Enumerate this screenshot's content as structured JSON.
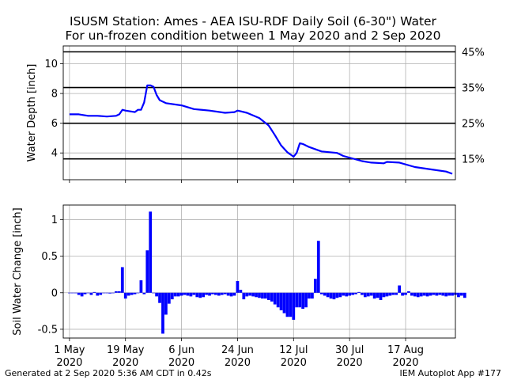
{
  "title_line1": "ISUSM Station: Ames - AEA ISU-RDF Daily Soil (6-30\") Water",
  "title_line2": "For un-frozen condition between 1 May 2020 and 2 Sep 2020",
  "footer_left": "Generated at 2 Sep 2020 5:36 AM CDT in 0.42s",
  "footer_right": "IEM Autoplot App #177",
  "colors": {
    "series": "#0000ff",
    "grid": "#b0b0b0",
    "threshold": "#000000"
  },
  "chart_data": [
    {
      "type": "line",
      "ylabel": "Water Depth [inch]",
      "ylim": [
        2.2,
        11.2
      ],
      "yticks": [
        4,
        6,
        8,
        10
      ],
      "grid": true,
      "x_start": "2020-05-01",
      "x": [
        "2020-05-01",
        "2020-05-04",
        "2020-05-07",
        "2020-05-10",
        "2020-05-13",
        "2020-05-16",
        "2020-05-17",
        "2020-05-18",
        "2020-05-19",
        "2020-05-22",
        "2020-05-23",
        "2020-05-24",
        "2020-05-25",
        "2020-05-26",
        "2020-05-27",
        "2020-05-28",
        "2020-05-29",
        "2020-05-30",
        "2020-06-01",
        "2020-06-06",
        "2020-06-10",
        "2020-06-15",
        "2020-06-20",
        "2020-06-23",
        "2020-06-24",
        "2020-06-25",
        "2020-06-27",
        "2020-07-01",
        "2020-07-04",
        "2020-07-06",
        "2020-07-08",
        "2020-07-10",
        "2020-07-12",
        "2020-07-13",
        "2020-07-14",
        "2020-07-15",
        "2020-07-17",
        "2020-07-21",
        "2020-07-26",
        "2020-07-28",
        "2020-08-03",
        "2020-08-06",
        "2020-08-10",
        "2020-08-11",
        "2020-08-15",
        "2020-08-20",
        "2020-08-25",
        "2020-08-30",
        "2020-09-01"
      ],
      "y": [
        6.6,
        6.6,
        6.5,
        6.5,
        6.45,
        6.5,
        6.6,
        6.9,
        6.85,
        6.75,
        6.9,
        6.9,
        7.4,
        8.55,
        8.55,
        8.45,
        7.9,
        7.55,
        7.35,
        7.2,
        6.95,
        6.85,
        6.7,
        6.75,
        6.85,
        6.8,
        6.7,
        6.35,
        5.85,
        5.2,
        4.5,
        4.05,
        3.75,
        4.0,
        4.65,
        4.6,
        4.4,
        4.1,
        4.0,
        3.8,
        3.45,
        3.35,
        3.3,
        3.4,
        3.35,
        3.05,
        2.9,
        2.75,
        2.6
      ],
      "thresholds": [
        {
          "value": 10.8,
          "label": "45%"
        },
        {
          "value": 8.4,
          "label": "35%"
        },
        {
          "value": 6.0,
          "label": "25%"
        },
        {
          "value": 3.6,
          "label": "15%"
        }
      ]
    },
    {
      "type": "bar",
      "ylabel": "Soil Water Change [inch]",
      "ylim": [
        -0.62,
        1.2
      ],
      "yticks": [
        -0.5,
        0.0,
        0.5,
        1.0
      ],
      "grid": true,
      "x_start": "2020-05-01",
      "values": [
        0.0,
        0.0,
        0.0,
        -0.03,
        -0.05,
        -0.02,
        0.0,
        -0.03,
        0.01,
        -0.04,
        -0.03,
        0.0,
        0.0,
        -0.01,
        0.0,
        0.02,
        0.02,
        0.35,
        -0.08,
        -0.04,
        -0.03,
        -0.02,
        0.0,
        0.17,
        -0.02,
        0.58,
        1.11,
        0.0,
        -0.05,
        -0.14,
        -0.56,
        -0.3,
        -0.15,
        -0.09,
        -0.05,
        -0.05,
        -0.04,
        -0.03,
        -0.04,
        -0.05,
        -0.03,
        -0.06,
        -0.07,
        -0.06,
        -0.03,
        -0.04,
        -0.02,
        -0.03,
        -0.04,
        -0.03,
        -0.02,
        -0.04,
        -0.05,
        -0.04,
        0.16,
        0.04,
        -0.09,
        -0.05,
        -0.04,
        -0.05,
        -0.06,
        -0.07,
        -0.08,
        -0.08,
        -0.1,
        -0.12,
        -0.16,
        -0.2,
        -0.24,
        -0.28,
        -0.33,
        -0.33,
        -0.37,
        -0.2,
        -0.2,
        -0.22,
        -0.2,
        -0.08,
        -0.08,
        0.19,
        0.71,
        -0.02,
        -0.04,
        -0.06,
        -0.08,
        -0.09,
        -0.07,
        -0.06,
        -0.04,
        -0.05,
        -0.04,
        -0.03,
        -0.02,
        0.01,
        -0.03,
        -0.06,
        -0.05,
        -0.04,
        -0.08,
        -0.07,
        -0.1,
        -0.06,
        -0.05,
        -0.04,
        -0.03,
        -0.03,
        0.1,
        -0.04,
        -0.03,
        0.02,
        -0.04,
        -0.05,
        -0.06,
        -0.05,
        -0.04,
        -0.05,
        -0.04,
        -0.03,
        -0.04,
        -0.03,
        -0.04,
        -0.05,
        -0.04,
        -0.04,
        -0.03,
        -0.06,
        -0.04,
        -0.07
      ]
    }
  ],
  "xaxis": {
    "ticks": [
      {
        "date": "2020-05-01",
        "label": "1 May",
        "year": "2020"
      },
      {
        "date": "2020-05-19",
        "label": "19 May",
        "year": "2020"
      },
      {
        "date": "2020-06-06",
        "label": "6 Jun",
        "year": "2020"
      },
      {
        "date": "2020-06-24",
        "label": "24 Jun",
        "year": "2020"
      },
      {
        "date": "2020-07-12",
        "label": "12 Jul",
        "year": "2020"
      },
      {
        "date": "2020-07-30",
        "label": "30 Jul",
        "year": "2020"
      },
      {
        "date": "2020-08-17",
        "label": "17 Aug",
        "year": "2020"
      }
    ],
    "xlim": [
      "2020-04-29",
      "2020-09-02"
    ]
  }
}
